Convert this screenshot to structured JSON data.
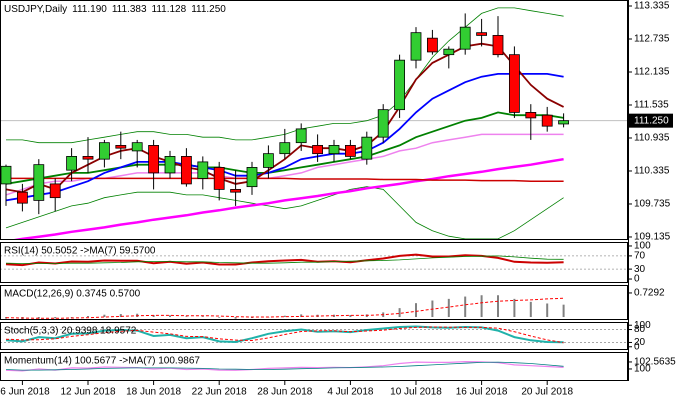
{
  "chart_data": [
    {
      "type": "candlestick",
      "title": "USDJPY,Daily",
      "ohlc": [
        {
          "value": 111.19,
          "label": "111.190"
        },
        {
          "value": 111.383,
          "label": "111.383"
        },
        {
          "value": 111.128,
          "label": "111.128"
        },
        {
          "value": 111.25,
          "label": "111.250"
        }
      ],
      "categories": [
        null,
        "6 Jun 2018",
        null,
        null,
        null,
        "12 Jun 2018",
        null,
        null,
        null,
        "18 Jun 2018",
        null,
        null,
        null,
        "22 Jun 2018",
        null,
        null,
        null,
        "28 Jun 2018",
        null,
        null,
        null,
        "4 Jul 2018",
        null,
        null,
        null,
        "10 Jul 2018",
        null,
        null,
        null,
        "16 Jul 2018",
        null,
        null,
        null,
        "20 Jul 2018",
        null
      ],
      "open": [
        110.1,
        109.95,
        109.8,
        110.1,
        110.35,
        110.6,
        110.55,
        110.8,
        110.7,
        110.8,
        110.3,
        110.6,
        110.2,
        110.4,
        110.0,
        110.05,
        110.4,
        110.65,
        110.85,
        110.8,
        110.65,
        110.8,
        110.55,
        110.95,
        111.45,
        112.35,
        112.75,
        112.45,
        112.55,
        112.85,
        112.8,
        112.45,
        111.4,
        111.35,
        111.19
      ],
      "high": [
        110.45,
        110.1,
        110.55,
        110.2,
        110.75,
        110.95,
        110.9,
        111.05,
        110.9,
        110.9,
        110.7,
        110.75,
        110.6,
        110.5,
        110.35,
        110.5,
        110.8,
        111.1,
        111.2,
        111.0,
        110.9,
        110.9,
        111.05,
        111.55,
        112.45,
        112.95,
        112.9,
        112.6,
        113.2,
        113.1,
        113.15,
        112.6,
        111.55,
        111.5,
        111.383
      ],
      "low": [
        109.7,
        109.6,
        109.55,
        109.6,
        110.15,
        110.3,
        110.4,
        110.55,
        110.4,
        110.0,
        110.2,
        110.05,
        110.0,
        109.8,
        109.7,
        109.9,
        110.2,
        110.55,
        110.7,
        110.5,
        110.5,
        110.55,
        110.45,
        110.85,
        111.3,
        112.2,
        112.45,
        112.2,
        112.45,
        112.6,
        112.4,
        111.3,
        110.9,
        111.05,
        111.128
      ],
      "close": [
        110.42,
        109.75,
        110.45,
        109.85,
        110.6,
        110.55,
        110.85,
        110.75,
        110.85,
        110.3,
        110.6,
        110.1,
        110.5,
        110.0,
        109.95,
        110.4,
        110.65,
        110.85,
        111.1,
        110.65,
        110.8,
        110.6,
        110.95,
        111.45,
        112.35,
        112.85,
        112.5,
        112.55,
        112.95,
        112.8,
        112.45,
        111.4,
        111.3,
        111.15,
        111.25
      ],
      "up_color": "#32cd32",
      "down_color": "#ff0000",
      "last": {
        "value": 111.25,
        "label": "111.250"
      },
      "series": [
        {
          "color": "#008000",
          "width": 0.8,
          "values": [
            110.9,
            110.9,
            110.85,
            110.85,
            110.85,
            110.9,
            110.95,
            111.0,
            111.05,
            111.05,
            111.0,
            111.0,
            110.95,
            110.95,
            110.9,
            110.9,
            110.95,
            111.0,
            111.1,
            111.15,
            111.2,
            111.2,
            111.25,
            111.35,
            111.6,
            112.0,
            112.4,
            112.7,
            112.95,
            113.2,
            113.3,
            113.3,
            113.25,
            113.2,
            113.15
          ]
        },
        {
          "color": "#008000",
          "width": 0.8,
          "values": [
            109.3,
            109.4,
            109.5,
            109.6,
            109.7,
            109.75,
            109.85,
            109.9,
            109.95,
            109.95,
            109.95,
            109.9,
            109.9,
            109.85,
            109.8,
            109.75,
            109.7,
            109.65,
            109.7,
            109.8,
            109.9,
            110.0,
            110.05,
            110.0,
            109.7,
            109.4,
            109.25,
            109.15,
            109.1,
            109.1,
            109.1,
            109.25,
            109.45,
            109.65,
            109.85
          ]
        },
        {
          "color": "#ee82ee",
          "width": 1.5,
          "values": [
            109.9,
            110.0,
            110.1,
            110.15,
            110.15,
            110.2,
            110.2,
            110.25,
            110.3,
            110.3,
            110.3,
            110.3,
            110.3,
            110.25,
            110.2,
            110.2,
            110.2,
            110.25,
            110.3,
            110.4,
            110.45,
            110.5,
            110.55,
            110.6,
            110.7,
            110.75,
            110.85,
            110.9,
            110.95,
            111.0,
            111.0,
            111.0,
            111.0,
            111.0,
            111.0
          ]
        },
        {
          "color": "#ff00ff",
          "width": 2.5,
          "values": [
            109.05,
            109.1,
            109.14,
            109.18,
            109.23,
            109.27,
            109.31,
            109.36,
            109.4,
            109.45,
            109.49,
            109.53,
            109.58,
            109.62,
            109.67,
            109.71,
            109.75,
            109.8,
            109.84,
            109.88,
            109.93,
            109.97,
            110.02,
            110.06,
            110.1,
            110.15,
            110.19,
            110.24,
            110.28,
            110.32,
            110.37,
            110.41,
            110.45,
            110.5,
            110.55
          ]
        },
        {
          "color": "#cc0000",
          "width": 1.5,
          "values": [
            110.2,
            110.2,
            110.2,
            110.2,
            110.2,
            110.2,
            110.2,
            110.2,
            110.2,
            110.2,
            110.2,
            110.2,
            110.2,
            110.2,
            110.2,
            110.2,
            110.2,
            110.2,
            110.19,
            110.19,
            110.19,
            110.19,
            110.19,
            110.18,
            110.18,
            110.18,
            110.17,
            110.17,
            110.17,
            110.16,
            110.16,
            110.16,
            110.15,
            110.15,
            110.15
          ]
        },
        {
          "color": "#008000",
          "width": 1.8,
          "values": [
            110.1,
            110.15,
            110.2,
            110.25,
            110.3,
            110.3,
            110.35,
            110.4,
            110.45,
            110.45,
            110.45,
            110.45,
            110.4,
            110.4,
            110.35,
            110.3,
            110.3,
            110.35,
            110.4,
            110.45,
            110.5,
            110.55,
            110.6,
            110.7,
            110.8,
            110.95,
            111.05,
            111.15,
            111.25,
            111.3,
            111.4,
            111.35,
            111.35,
            111.35,
            111.3
          ]
        },
        {
          "color": "#0000ff",
          "width": 1.8,
          "values": [
            109.8,
            109.85,
            109.9,
            109.95,
            110.05,
            110.15,
            110.3,
            110.4,
            110.5,
            110.5,
            110.5,
            110.45,
            110.4,
            110.35,
            110.25,
            110.25,
            110.3,
            110.4,
            110.55,
            110.6,
            110.65,
            110.65,
            110.7,
            110.85,
            111.1,
            111.4,
            111.65,
            111.8,
            111.95,
            112.05,
            112.1,
            112.1,
            112.1,
            112.1,
            112.05
          ]
        },
        {
          "color": "#8b0000",
          "width": 1.8,
          "values": [
            110.0,
            109.95,
            110.1,
            110.0,
            110.3,
            110.45,
            110.6,
            110.7,
            110.75,
            110.6,
            110.5,
            110.4,
            110.35,
            110.2,
            110.1,
            110.15,
            110.35,
            110.55,
            110.8,
            110.75,
            110.75,
            110.7,
            110.8,
            111.05,
            111.5,
            112.0,
            112.3,
            112.45,
            112.6,
            112.65,
            112.6,
            112.25,
            111.9,
            111.65,
            111.5
          ]
        }
      ],
      "ylim": [
        109.08,
        113.444
      ],
      "yticks": [
        113.335,
        112.735,
        112.135,
        111.535,
        110.935,
        110.335,
        109.735,
        109.135
      ]
    },
    {
      "type": "line",
      "title": "RSI(14) 50.5052 ->MA(7) 59.5700",
      "series": [
        {
          "color": "#cc0000",
          "width": 2,
          "values": [
            45,
            42,
            50,
            47,
            53,
            52,
            56,
            55,
            55,
            48,
            52,
            46,
            50,
            44,
            44,
            50,
            54,
            56,
            58,
            52,
            54,
            51,
            57,
            62,
            70,
            74,
            68,
            68,
            72,
            70,
            64,
            52,
            50,
            49,
            50.5052
          ]
        },
        {
          "color": "#008000",
          "width": 0.8,
          "values": [
            48,
            47,
            47,
            47,
            48,
            48,
            49,
            50,
            52,
            53,
            53,
            52,
            52,
            50,
            49,
            48,
            48,
            49,
            51,
            51,
            53,
            54,
            55,
            56,
            58,
            61,
            64,
            66,
            68,
            69,
            70,
            67,
            63,
            60,
            59.57
          ]
        }
      ],
      "levels": [
        70,
        30
      ],
      "ylim": [
        -12,
        112
      ],
      "yticks": [
        100,
        70,
        30,
        0
      ]
    },
    {
      "type": "bar",
      "title": "MACD(12,26,9) 0.3745 0.5700",
      "color": "#808080",
      "values": [
        -0.05,
        -0.08,
        -0.05,
        -0.04,
        0.0,
        0.03,
        0.07,
        0.09,
        0.1,
        0.06,
        0.05,
        0.02,
        0.02,
        -0.02,
        -0.05,
        -0.03,
        0.0,
        0.04,
        0.08,
        0.07,
        0.07,
        0.06,
        0.08,
        0.14,
        0.27,
        0.42,
        0.5,
        0.55,
        0.62,
        0.66,
        0.66,
        0.55,
        0.46,
        0.41,
        0.3745
      ],
      "series": [
        {
          "color": "#ff0000",
          "width": 1,
          "dashed": true,
          "values": [
            -0.02,
            -0.03,
            -0.04,
            -0.04,
            -0.03,
            -0.02,
            0.0,
            0.02,
            0.04,
            0.05,
            0.05,
            0.04,
            0.04,
            0.03,
            0.01,
            0.0,
            0.0,
            0.01,
            0.02,
            0.03,
            0.04,
            0.05,
            0.05,
            0.07,
            0.11,
            0.17,
            0.24,
            0.3,
            0.37,
            0.43,
            0.48,
            0.5,
            0.52,
            0.55,
            0.57
          ]
        }
      ],
      "ylim": [
        -0.09,
        0.97
      ],
      "yticks": [
        0.7292
      ]
    },
    {
      "type": "line",
      "title": "Stoch(5,3,3) 20.9398 18.9572",
      "series": [
        {
          "color": "#20b2aa",
          "width": 2,
          "values": [
            30,
            25,
            45,
            40,
            60,
            62,
            75,
            78,
            75,
            50,
            55,
            40,
            45,
            25,
            22,
            40,
            60,
            72,
            80,
            70,
            72,
            68,
            78,
            85,
            92,
            94,
            90,
            88,
            92,
            90,
            75,
            45,
            30,
            22,
            20.9398
          ]
        },
        {
          "color": "#ff0000",
          "width": 1,
          "dashed": true,
          "values": [
            35,
            32,
            33,
            37,
            48,
            56,
            66,
            72,
            76,
            68,
            60,
            48,
            47,
            37,
            31,
            29,
            41,
            57,
            71,
            74,
            74,
            70,
            73,
            77,
            85,
            90,
            92,
            91,
            90,
            90,
            86,
            70,
            50,
            32,
            18.9572
          ]
        }
      ],
      "levels": [
        80,
        20
      ],
      "ylim": [
        -15,
        115
      ],
      "yticks": [
        100,
        80,
        20,
        0
      ]
    },
    {
      "type": "line",
      "title": "Momentum(14) 100.5677 ->MA(7) 100.9867",
      "series": [
        {
          "color": "#ee82ee",
          "width": 1.2,
          "values": [
            99.5,
            99.3,
            100.0,
            99.6,
            100.4,
            100.3,
            100.7,
            100.6,
            100.5,
            100.0,
            100.3,
            99.8,
            100.0,
            99.6,
            99.5,
            99.8,
            100.2,
            100.4,
            100.6,
            100.5,
            100.6,
            100.5,
            100.8,
            101.2,
            102.0,
            102.5,
            102.4,
            102.4,
            102.7,
            102.6,
            102.3,
            101.5,
            101.2,
            100.9,
            100.5677
          ]
        },
        {
          "color": "#008080",
          "width": 0.8,
          "values": [
            99.8,
            99.6,
            99.6,
            99.7,
            99.8,
            100.0,
            100.2,
            100.3,
            100.4,
            100.4,
            100.4,
            100.3,
            100.2,
            100.0,
            99.9,
            99.8,
            99.8,
            99.9,
            100.1,
            100.2,
            100.4,
            100.5,
            100.6,
            100.7,
            100.9,
            101.2,
            101.5,
            101.8,
            102.1,
            102.4,
            102.5,
            102.3,
            102.0,
            101.5,
            100.9867
          ]
        }
      ],
      "ylim": [
        95.6,
        106.2
      ],
      "yticks": [
        102.5635,
        100
      ]
    }
  ]
}
